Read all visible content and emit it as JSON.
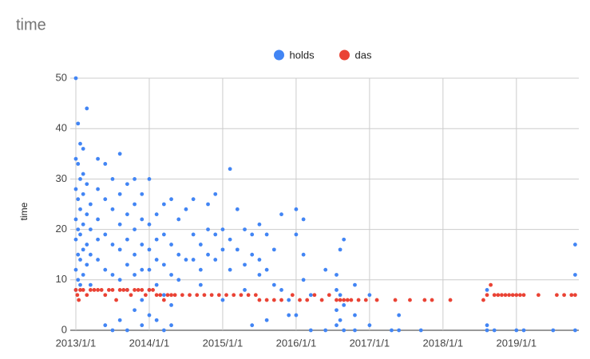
{
  "chart_data": {
    "type": "scatter",
    "title": "time",
    "y_label": "time",
    "grid": true,
    "legend": "top",
    "xlim": [
      2012.924,
      2019.85
    ],
    "ylim": [
      0,
      50
    ],
    "xticks": [
      {
        "value": 2013,
        "label": "2013/1/1"
      },
      {
        "value": 2014,
        "label": "2014/1/1"
      },
      {
        "value": 2015,
        "label": "2015/1/1"
      },
      {
        "value": 2016,
        "label": "2016/1/1"
      },
      {
        "value": 2017,
        "label": "2017/1/1"
      },
      {
        "value": 2018,
        "label": "2018/1/1"
      },
      {
        "value": 2019,
        "label": "2019/1/1"
      }
    ],
    "yticks": [
      0,
      10,
      20,
      30,
      40,
      50
    ],
    "series": [
      {
        "name": "holds",
        "color": "#4285f4",
        "x": [
          2013.0,
          2013.0,
          2013.0,
          2013.0,
          2013.0,
          2013.0,
          2013.0,
          2013.03,
          2013.03,
          2013.03,
          2013.03,
          2013.03,
          2013.03,
          2013.06,
          2013.06,
          2013.06,
          2013.06,
          2013.06,
          2013.06,
          2013.1,
          2013.1,
          2013.1,
          2013.1,
          2013.1,
          2013.1,
          2013.15,
          2013.15,
          2013.15,
          2013.15,
          2013.15,
          2013.2,
          2013.2,
          2013.2,
          2013.2,
          2013.3,
          2013.3,
          2013.3,
          2013.3,
          2013.3,
          2013.4,
          2013.4,
          2013.4,
          2013.4,
          2013.4,
          2013.5,
          2013.5,
          2013.5,
          2013.5,
          2013.5,
          2013.6,
          2013.6,
          2013.6,
          2013.6,
          2013.6,
          2013.6,
          2013.7,
          2013.7,
          2013.7,
          2013.7,
          2013.7,
          2013.7,
          2013.8,
          2013.8,
          2013.8,
          2013.8,
          2013.8,
          2013.8,
          2013.9,
          2013.9,
          2013.9,
          2013.9,
          2013.9,
          2013.9,
          2014.0,
          2014.0,
          2014.0,
          2014.0,
          2014.0,
          2014.0,
          2014.1,
          2014.1,
          2014.1,
          2014.1,
          2014.1,
          2014.2,
          2014.2,
          2014.2,
          2014.2,
          2014.2,
          2014.3,
          2014.3,
          2014.3,
          2014.3,
          2014.3,
          2014.4,
          2014.4,
          2014.4,
          2014.5,
          2014.5,
          2014.6,
          2014.6,
          2014.6,
          2014.7,
          2014.7,
          2014.7,
          2014.8,
          2014.8,
          2014.8,
          2014.9,
          2014.9,
          2014.9,
          2015.0,
          2015.0,
          2015.0,
          2015.1,
          2015.1,
          2015.1,
          2015.2,
          2015.2,
          2015.3,
          2015.3,
          2015.3,
          2015.4,
          2015.4,
          2015.4,
          2015.5,
          2015.5,
          2015.5,
          2015.6,
          2015.6,
          2015.6,
          2015.7,
          2015.7,
          2015.8,
          2015.8,
          2015.9,
          2015.9,
          2016.0,
          2016.0,
          2016.0,
          2016.1,
          2016.1,
          2016.1,
          2016.2,
          2016.2,
          2016.4,
          2016.4,
          2016.55,
          2016.55,
          2016.55,
          2016.55,
          2016.6,
          2016.6,
          2016.6,
          2016.65,
          2016.65,
          2016.65,
          2016.8,
          2016.8,
          2016.8,
          2017.0,
          2017.0,
          2017.3,
          2017.4,
          2017.4,
          2017.7,
          2018.6,
          2018.6,
          2018.6,
          2018.7,
          2019.0,
          2019.1,
          2019.5,
          2019.8,
          2019.8,
          2019.8
        ],
        "values": [
          50,
          34,
          28,
          22,
          18,
          12,
          8,
          41,
          33,
          26,
          20,
          15,
          10,
          37,
          30,
          24,
          19,
          14,
          9,
          36,
          31,
          27,
          21,
          16,
          11,
          44,
          29,
          23,
          17,
          13,
          25,
          20,
          15,
          9,
          34,
          28,
          22,
          18,
          14,
          33,
          26,
          19,
          12,
          1,
          30,
          24,
          17,
          11,
          0,
          35,
          27,
          21,
          16,
          10,
          2,
          29,
          23,
          18,
          13,
          8,
          0,
          30,
          25,
          20,
          15,
          11,
          4,
          27,
          22,
          17,
          12,
          6,
          1,
          30,
          21,
          16,
          12,
          8,
          3,
          23,
          18,
          14,
          9,
          2,
          25,
          19,
          13,
          7,
          0,
          26,
          17,
          11,
          5,
          1,
          22,
          15,
          10,
          24,
          14,
          26,
          19,
          14,
          17,
          12,
          9,
          25,
          20,
          15,
          27,
          19,
          14,
          20,
          16,
          6,
          32,
          18,
          12,
          24,
          16,
          20,
          13,
          8,
          19,
          15,
          1,
          21,
          14,
          11,
          19,
          12,
          2,
          16,
          9,
          23,
          8,
          6,
          3,
          24,
          19,
          3,
          22,
          15,
          10,
          7,
          0,
          12,
          0,
          11,
          8,
          4,
          1,
          16,
          7,
          2,
          18,
          5,
          0,
          9,
          3,
          0,
          7,
          1,
          0,
          3,
          0,
          0,
          8,
          1,
          0,
          0,
          0,
          0,
          0,
          17,
          11,
          0
        ]
      },
      {
        "name": "das",
        "color": "#ea4335",
        "x": [
          2013.0,
          2013.02,
          2013.04,
          2013.06,
          2013.1,
          2013.15,
          2013.2,
          2013.25,
          2013.3,
          2013.35,
          2013.4,
          2013.45,
          2013.5,
          2013.55,
          2013.6,
          2013.65,
          2013.7,
          2013.75,
          2013.8,
          2013.85,
          2013.9,
          2013.95,
          2014.0,
          2014.05,
          2014.1,
          2014.15,
          2014.2,
          2014.25,
          2014.3,
          2014.35,
          2014.45,
          2014.55,
          2014.65,
          2014.75,
          2014.85,
          2014.95,
          2015.05,
          2015.15,
          2015.25,
          2015.35,
          2015.45,
          2015.5,
          2015.6,
          2015.7,
          2015.8,
          2015.95,
          2016.05,
          2016.15,
          2016.25,
          2016.35,
          2016.45,
          2016.55,
          2016.6,
          2016.65,
          2016.7,
          2016.75,
          2016.85,
          2016.95,
          2017.1,
          2017.35,
          2017.55,
          2017.75,
          2017.85,
          2018.1,
          2018.55,
          2018.6,
          2018.65,
          2018.7,
          2018.75,
          2018.8,
          2018.85,
          2018.9,
          2018.95,
          2019.0,
          2019.05,
          2019.1,
          2019.3,
          2019.55,
          2019.65,
          2019.75,
          2019.8
        ],
        "values": [
          8,
          7,
          6,
          8,
          8,
          7,
          8,
          8,
          8,
          8,
          7,
          8,
          8,
          6,
          8,
          8,
          8,
          7,
          8,
          8,
          8,
          7,
          8,
          8,
          7,
          7,
          6,
          7,
          7,
          7,
          7,
          7,
          7,
          7,
          7,
          7,
          7,
          7,
          7,
          7,
          7,
          6,
          6,
          6,
          6,
          7,
          6,
          6,
          7,
          6,
          7,
          6,
          6,
          6,
          6,
          6,
          6,
          6,
          6,
          6,
          6,
          6,
          6,
          6,
          6,
          7,
          9,
          7,
          7,
          7,
          7,
          7,
          7,
          7,
          7,
          7,
          7,
          7,
          7,
          7,
          7
        ]
      }
    ]
  }
}
